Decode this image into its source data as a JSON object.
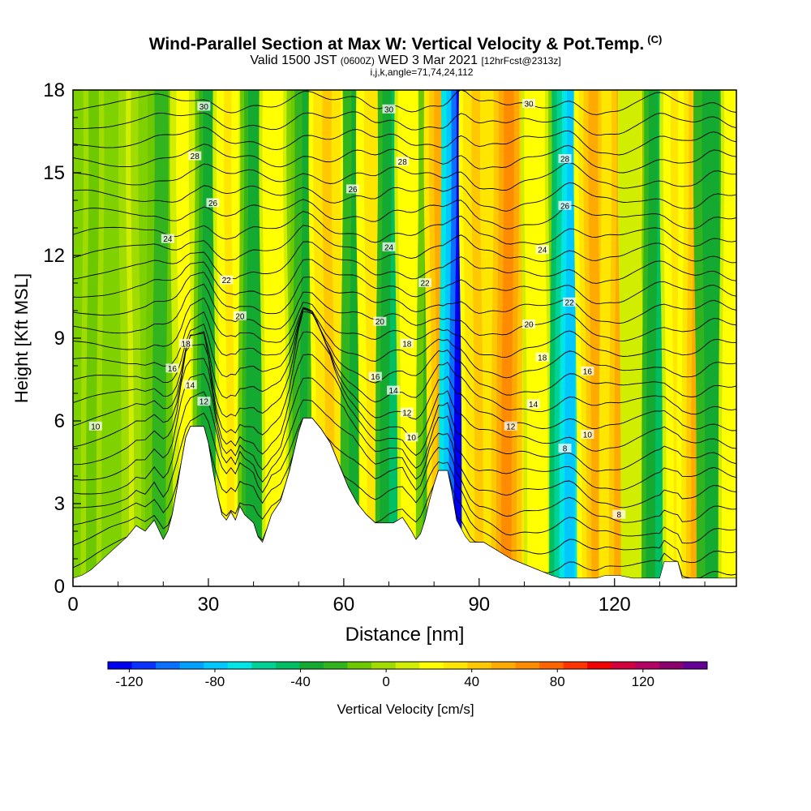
{
  "title": "Wind-Parallel Section at Max W: Vertical Velocity & Pot.Temp.",
  "title_mark": "(C)",
  "subtitle_main": "Valid 1500 JST",
  "subtitle_utc": "(0600Z)",
  "subtitle_date": "WED 3 Mar 2021",
  "subtitle_fcst": "[12hrFcst@2313z]",
  "subtitle_indices": "i,j,k,angle=71,74,24,112",
  "colors": {
    "neutral": "#7fd100",
    "positive_yellow": "#f5f500",
    "positive_orange": "#ffa000",
    "negative_green": "#1fae1f",
    "negative_cyan": "#00d8c8",
    "negative_blue": "#0014ff",
    "terrain": "#ffffff",
    "contour": "#000000"
  },
  "chart_data": {
    "type": "heatmap",
    "xlabel": "Distance [nm]",
    "ylabel": "Height [Kft MSL]",
    "xlim": [
      0,
      147
    ],
    "ylim": [
      0,
      18
    ],
    "x_ticks": [
      0,
      30,
      60,
      90,
      120
    ],
    "y_ticks": [
      0,
      3,
      6,
      9,
      12,
      15,
      18
    ],
    "colorbar": {
      "label": "Vertical Velocity [cm/s]",
      "range": [
        -130,
        150
      ],
      "ticks": [
        -120,
        -80,
        -40,
        0,
        40,
        80,
        120
      ],
      "colors": [
        "#0000f0",
        "#0a32ff",
        "#0a6eff",
        "#00a0ff",
        "#00c8ff",
        "#00e6e6",
        "#00d296",
        "#00be64",
        "#14aa32",
        "#32b41e",
        "#6ec800",
        "#a0dc00",
        "#d2ee00",
        "#ffff00",
        "#ffe600",
        "#ffc800",
        "#ffaa00",
        "#ff8c00",
        "#ff6400",
        "#ff3200",
        "#f00000",
        "#d2003c",
        "#b40064",
        "#8c006e",
        "#640096"
      ]
    },
    "vertical_velocity_bands": [
      {
        "x": 4,
        "w": -10
      },
      {
        "x": 13,
        "w": 5
      },
      {
        "x": 19,
        "w": -25
      },
      {
        "x": 25,
        "w": 20
      },
      {
        "x": 30,
        "w": -35
      },
      {
        "x": 35,
        "w": 30
      },
      {
        "x": 40,
        "w": -35
      },
      {
        "x": 45,
        "w": 25
      },
      {
        "x": 51,
        "w": -30
      },
      {
        "x": 57,
        "w": 45
      },
      {
        "x": 63,
        "w": -40
      },
      {
        "x": 67,
        "w": 35
      },
      {
        "x": 71,
        "w": -45
      },
      {
        "x": 75,
        "w": 25
      },
      {
        "x": 79,
        "w": -25
      },
      {
        "x": 83,
        "w": 60
      },
      {
        "x": 85.5,
        "w": -125
      },
      {
        "x": 90,
        "w": 40
      },
      {
        "x": 96,
        "w": 65
      },
      {
        "x": 103,
        "w": 25
      },
      {
        "x": 110,
        "w": -85
      },
      {
        "x": 116,
        "w": 50
      },
      {
        "x": 121,
        "w": 55
      },
      {
        "x": 124,
        "w": 15
      },
      {
        "x": 130,
        "w": -45
      },
      {
        "x": 134,
        "w": 30
      },
      {
        "x": 138,
        "w": 50
      },
      {
        "x": 142,
        "w": -40
      },
      {
        "x": 146,
        "w": 25
      }
    ],
    "terrain_kft": [
      [
        0,
        0.3
      ],
      [
        2,
        0.4
      ],
      [
        4,
        0.6
      ],
      [
        6,
        0.9
      ],
      [
        8,
        1.2
      ],
      [
        10,
        1.5
      ],
      [
        12,
        1.8
      ],
      [
        14,
        2.2
      ],
      [
        16,
        2.0
      ],
      [
        18,
        2.4
      ],
      [
        20,
        1.7
      ],
      [
        21,
        2.0
      ],
      [
        22,
        2.6
      ],
      [
        23,
        3.5
      ],
      [
        24,
        4.5
      ],
      [
        25,
        5.4
      ],
      [
        26,
        5.8
      ],
      [
        29,
        5.8
      ],
      [
        30,
        5.2
      ],
      [
        31,
        4.2
      ],
      [
        32,
        3.3
      ],
      [
        33,
        2.6
      ],
      [
        34,
        2.4
      ],
      [
        35,
        2.7
      ],
      [
        36,
        2.4
      ],
      [
        37,
        2.9
      ],
      [
        38,
        2.6
      ],
      [
        40,
        2.3
      ],
      [
        41,
        1.8
      ],
      [
        42,
        1.6
      ],
      [
        43,
        2.1
      ],
      [
        44,
        2.6
      ],
      [
        46,
        3.1
      ],
      [
        48,
        4.2
      ],
      [
        50,
        5.6
      ],
      [
        51,
        6.1
      ],
      [
        53,
        6.1
      ],
      [
        55,
        5.7
      ],
      [
        57,
        5.2
      ],
      [
        59,
        4.4
      ],
      [
        61,
        3.6
      ],
      [
        63,
        3.0
      ],
      [
        65,
        2.6
      ],
      [
        67,
        2.3
      ],
      [
        69,
        2.3
      ],
      [
        71,
        2.3
      ],
      [
        73,
        2.5
      ],
      [
        75,
        2.0
      ],
      [
        76,
        1.7
      ],
      [
        77,
        1.9
      ],
      [
        78,
        2.4
      ],
      [
        79,
        3.1
      ],
      [
        80,
        3.7
      ],
      [
        81,
        4.2
      ],
      [
        83,
        4.2
      ],
      [
        84,
        3.4
      ],
      [
        85,
        2.4
      ],
      [
        87,
        1.8
      ],
      [
        88,
        1.6
      ],
      [
        91,
        1.6
      ],
      [
        94,
        1.3
      ],
      [
        97,
        1.0
      ],
      [
        100,
        0.8
      ],
      [
        103,
        0.6
      ],
      [
        106,
        0.4
      ],
      [
        108,
        0.3
      ],
      [
        116,
        0.3
      ],
      [
        118,
        0.4
      ],
      [
        121,
        0.4
      ],
      [
        124,
        0.3
      ],
      [
        130,
        0.3
      ],
      [
        131,
        0.9
      ],
      [
        134,
        0.9
      ],
      [
        135,
        0.3
      ],
      [
        147,
        0.3
      ]
    ],
    "theta_contour_labels": [
      {
        "x": 29,
        "y": 17.4,
        "text": "30"
      },
      {
        "x": 70,
        "y": 17.3,
        "text": "30"
      },
      {
        "x": 101,
        "y": 17.5,
        "text": "30"
      },
      {
        "x": 27,
        "y": 15.6,
        "text": "28"
      },
      {
        "x": 73,
        "y": 15.4,
        "text": "28"
      },
      {
        "x": 109,
        "y": 15.5,
        "text": "28"
      },
      {
        "x": 62,
        "y": 14.4,
        "text": "26"
      },
      {
        "x": 31,
        "y": 13.9,
        "text": "26"
      },
      {
        "x": 109,
        "y": 13.8,
        "text": "26"
      },
      {
        "x": 21,
        "y": 12.6,
        "text": "24"
      },
      {
        "x": 70,
        "y": 12.3,
        "text": "24"
      },
      {
        "x": 104,
        "y": 12.2,
        "text": "24"
      },
      {
        "x": 34,
        "y": 11.1,
        "text": "22"
      },
      {
        "x": 78,
        "y": 11.0,
        "text": "22"
      },
      {
        "x": 110,
        "y": 10.3,
        "text": "22"
      },
      {
        "x": 37,
        "y": 9.8,
        "text": "20"
      },
      {
        "x": 68,
        "y": 9.6,
        "text": "20"
      },
      {
        "x": 101,
        "y": 9.5,
        "text": "20"
      },
      {
        "x": 25,
        "y": 8.8,
        "text": "18"
      },
      {
        "x": 74,
        "y": 8.8,
        "text": "18"
      },
      {
        "x": 104,
        "y": 8.3,
        "text": "18"
      },
      {
        "x": 22,
        "y": 7.9,
        "text": "16"
      },
      {
        "x": 67,
        "y": 7.6,
        "text": "16"
      },
      {
        "x": 114,
        "y": 7.8,
        "text": "16"
      },
      {
        "x": 26,
        "y": 7.3,
        "text": "14"
      },
      {
        "x": 71,
        "y": 7.1,
        "text": "14"
      },
      {
        "x": 102,
        "y": 6.6,
        "text": "14"
      },
      {
        "x": 29,
        "y": 6.7,
        "text": "12"
      },
      {
        "x": 74,
        "y": 6.3,
        "text": "12"
      },
      {
        "x": 97,
        "y": 5.8,
        "text": "12"
      },
      {
        "x": 5,
        "y": 5.8,
        "text": "10"
      },
      {
        "x": 75,
        "y": 5.4,
        "text": "10"
      },
      {
        "x": 114,
        "y": 5.5,
        "text": "10"
      },
      {
        "x": 109,
        "y": 5.0,
        "text": "8"
      },
      {
        "x": 121,
        "y": 2.6,
        "text": "8"
      }
    ]
  }
}
